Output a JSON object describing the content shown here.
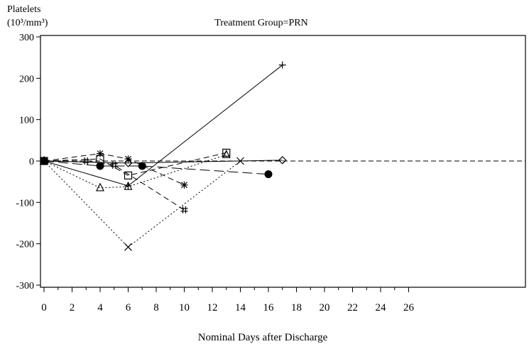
{
  "chart_data": {
    "type": "line",
    "title": "Treatment Group=PRN",
    "ylabel_line1": "Platelets",
    "ylabel_line2": "(10³/mm³)",
    "xlabel": "Nominal Days after Discharge",
    "xlim": [
      0,
      26
    ],
    "ylim": [
      -300,
      300
    ],
    "x_ticks": [
      "0",
      "2",
      "4",
      "6",
      "8",
      "10",
      "12",
      "14",
      "16",
      "18",
      "20",
      "22",
      "24",
      "26"
    ],
    "y_ticks": [
      "300",
      "200",
      "100",
      "0",
      "-100",
      "-200",
      "-300"
    ],
    "reference_line": 0,
    "series": [
      {
        "marker": "plus",
        "line": "solid",
        "points": [
          [
            0,
            0
          ],
          [
            6,
            -60
          ],
          [
            17,
            232
          ]
        ]
      },
      {
        "marker": "circle",
        "line": "long-dash",
        "points": [
          [
            0,
            0
          ],
          [
            4,
            -12
          ],
          [
            7,
            -12
          ],
          [
            16,
            -32
          ]
        ]
      },
      {
        "marker": "hash",
        "line": "dash",
        "points": [
          [
            0,
            0
          ],
          [
            3,
            0
          ],
          [
            5,
            -10
          ],
          [
            10,
            -118
          ]
        ]
      },
      {
        "marker": "star",
        "line": "dash",
        "points": [
          [
            0,
            0
          ],
          [
            4,
            18
          ],
          [
            6,
            5
          ],
          [
            10,
            -58
          ]
        ]
      },
      {
        "marker": "square",
        "line": "dash",
        "points": [
          [
            0,
            0
          ],
          [
            4,
            5
          ],
          [
            6,
            -35
          ],
          [
            13,
            20
          ]
        ]
      },
      {
        "marker": "triangle",
        "line": "dot",
        "points": [
          [
            0,
            0
          ],
          [
            4,
            -65
          ],
          [
            6,
            -62
          ],
          [
            13,
            15
          ]
        ]
      },
      {
        "marker": "x",
        "line": "dot",
        "points": [
          [
            0,
            0
          ],
          [
            6,
            -208
          ],
          [
            14,
            0
          ]
        ]
      },
      {
        "marker": "diamond",
        "line": "solid",
        "points": [
          [
            0,
            0
          ],
          [
            6,
            -5
          ],
          [
            17,
            2
          ]
        ]
      }
    ]
  }
}
